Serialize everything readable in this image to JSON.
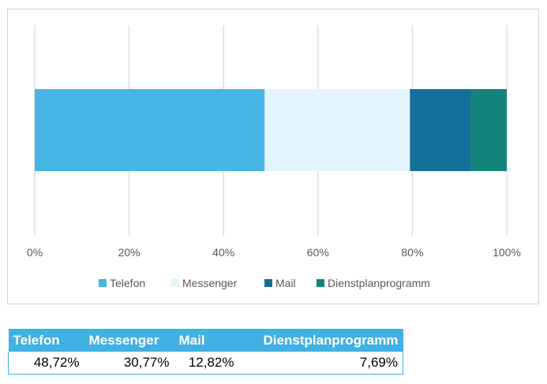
{
  "chart_data": {
    "type": "bar",
    "orientation": "horizontal",
    "stacked": "percent",
    "categories": [
      ""
    ],
    "series": [
      {
        "name": "Telefon",
        "values": [
          48.72
        ],
        "color": "#47b5e6"
      },
      {
        "name": "Messenger",
        "values": [
          30.77
        ],
        "color": "#e3f4fc"
      },
      {
        "name": "Mail",
        "values": [
          12.82
        ],
        "color": "#136f9a"
      },
      {
        "name": "Dienstplanprogramm",
        "values": [
          7.69
        ],
        "color": "#15847a"
      }
    ],
    "xlim": [
      0,
      100
    ],
    "xticks": [
      "0%",
      "20%",
      "40%",
      "60%",
      "80%",
      "100%"
    ],
    "grid": true,
    "legend": "bottom"
  },
  "table": {
    "headers": [
      "Telefon",
      "Messenger",
      "Mail",
      "Dienstplanprogramm"
    ],
    "values": [
      "48,72%",
      "30,77%",
      "12,82%",
      "7,69%"
    ],
    "header_color": "#41b0e3"
  }
}
